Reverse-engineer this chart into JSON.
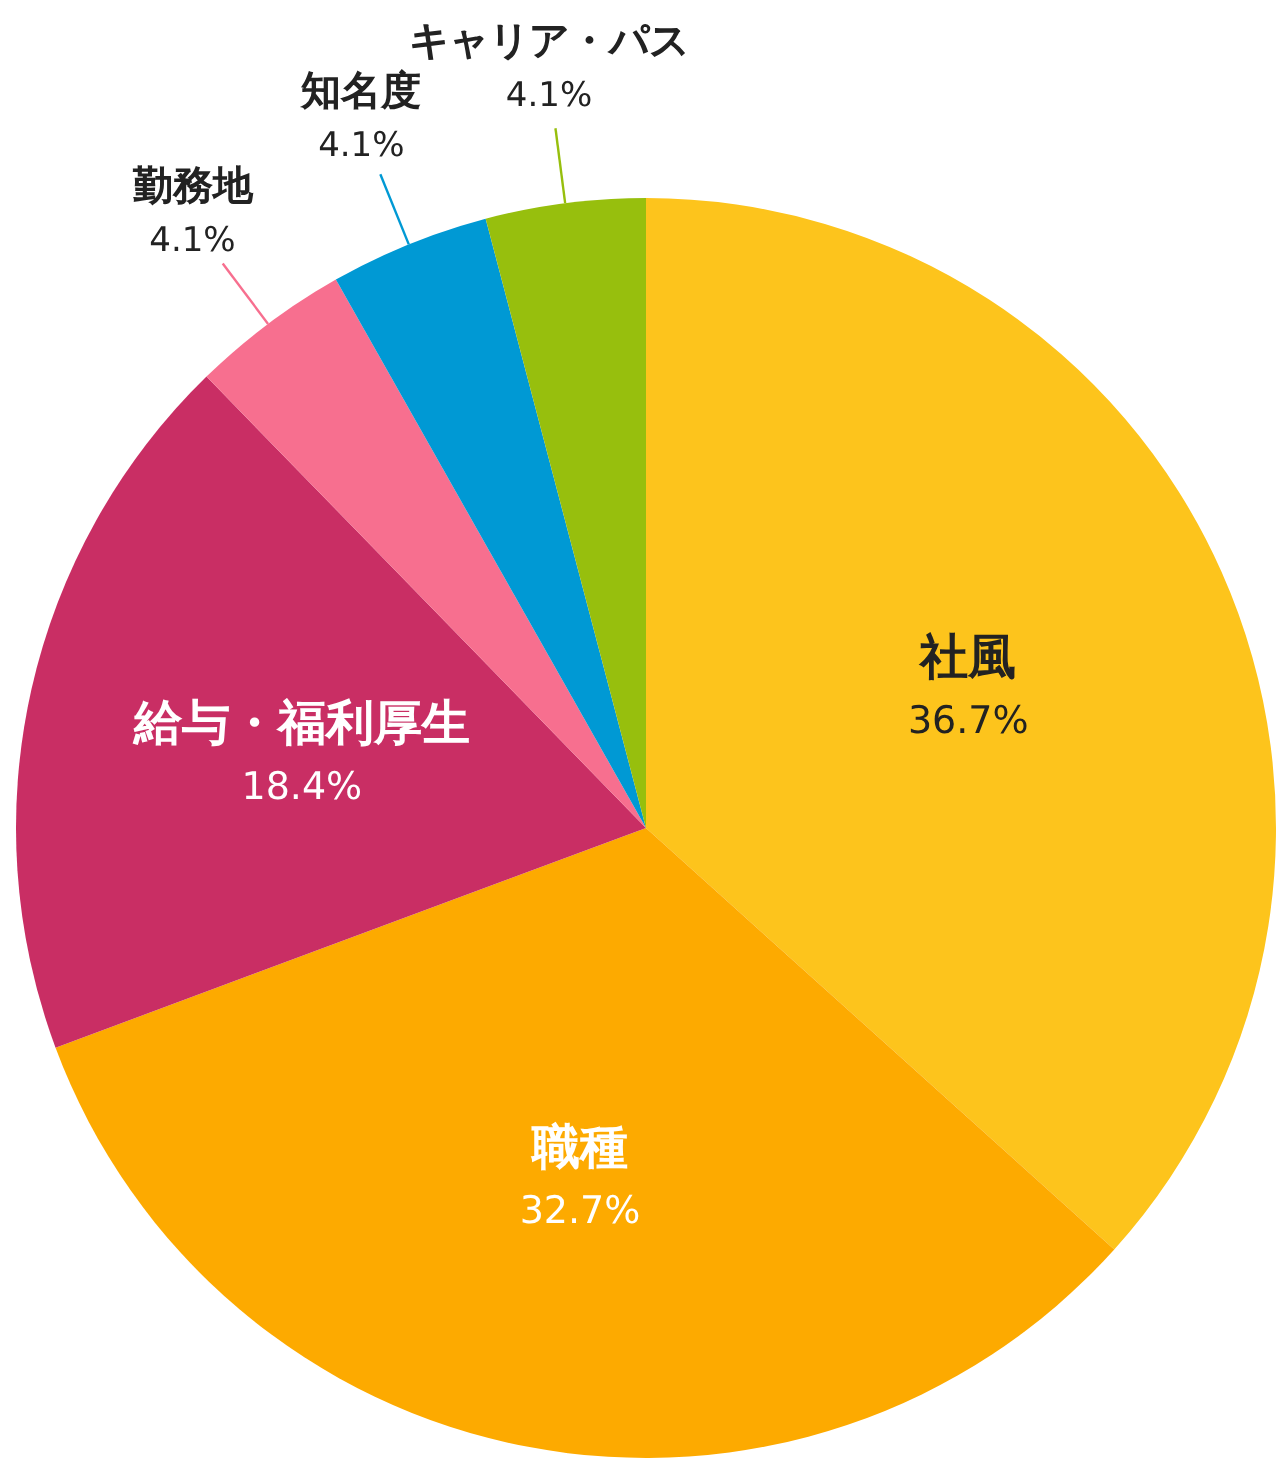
{
  "chart_data": {
    "type": "pie",
    "categories": [
      "社風",
      "職種",
      "給与・福利厚生",
      "勤務地",
      "知名度",
      "キャリア・パス"
    ],
    "values": [
      36.7,
      32.7,
      18.4,
      4.1,
      4.1,
      4.1
    ],
    "colors": [
      "#fdc41c",
      "#fdaa00",
      "#c92e64",
      "#f76f8f",
      "#0099d4",
      "#97bf0d"
    ],
    "value_labels": [
      "36.7%",
      "32.7%",
      "18.4%",
      "4.1%",
      "4.1%",
      "4.1%"
    ]
  }
}
